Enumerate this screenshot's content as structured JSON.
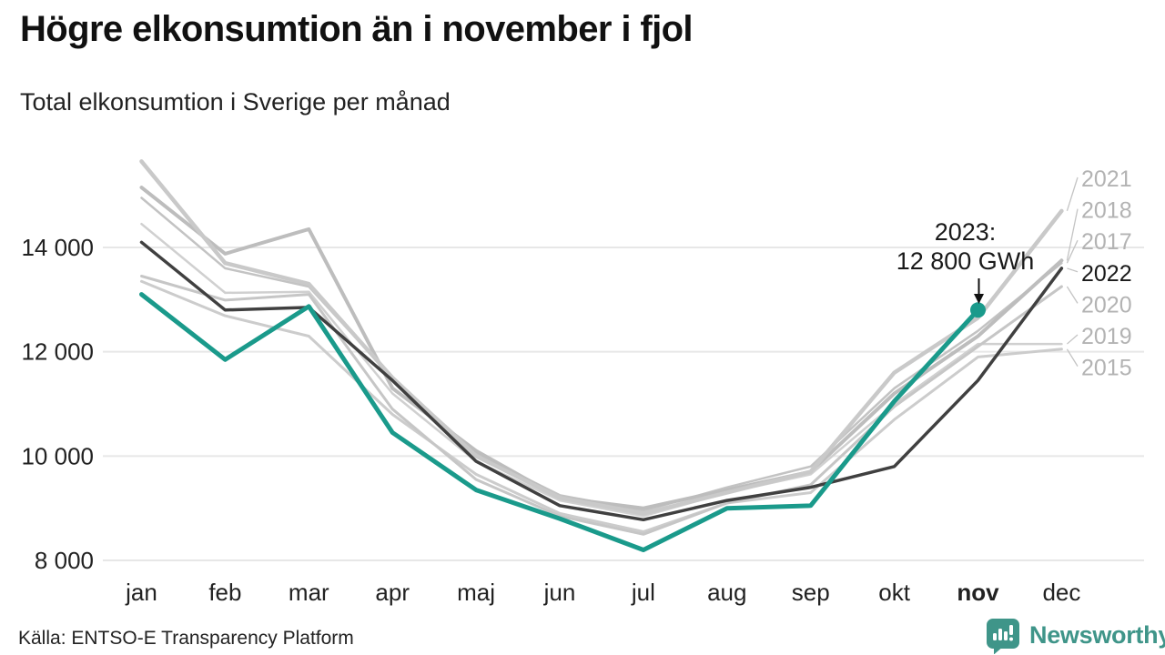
{
  "header": {
    "title": "Högre elkonsumtion än i november i fjol",
    "subtitle": "Total elkonsumtion i Sverige per månad"
  },
  "footer": {
    "source": "Källa: ENTSO-E Transparency Platform",
    "brand": "Newsworthy"
  },
  "annotation": {
    "line1": "2023:",
    "line2": "12 800 GWh",
    "target_series": "2023",
    "target_month": "nov",
    "value": 12800
  },
  "colors": {
    "accent": "#1a9a8b",
    "dark_line": "#404040",
    "grid": "#e7e7e7",
    "year_label": "#b3b3b3",
    "year_label_dark": "#1a1a1a",
    "text_dark": "#222222",
    "brand": "#3f9589"
  },
  "chart_data": {
    "type": "line",
    "title": "Högre elkonsumtion än i november i fjol",
    "subtitle": "Total elkonsumtion i Sverige per månad",
    "xlabel": "",
    "ylabel": "GWh",
    "unit": "GWh",
    "grid": "horizontal only",
    "legend_position": "right-edge year labels",
    "ylim": [
      7600,
      15900
    ],
    "x_categories": [
      "jan",
      "feb",
      "mar",
      "apr",
      "maj",
      "jun",
      "jul",
      "aug",
      "sep",
      "okt",
      "nov",
      "dec"
    ],
    "bold_x_category": "nov",
    "y_ticks": [
      {
        "value": 8000,
        "label": "8 000"
      },
      {
        "value": 10000,
        "label": "10 000"
      },
      {
        "value": 12000,
        "label": "12 000"
      },
      {
        "value": 14000,
        "label": "14 000"
      }
    ],
    "series": [
      {
        "name": "2015",
        "color": "#cccccc",
        "width": 3,
        "values": [
          13350,
          12690,
          12300,
          10800,
          9650,
          8900,
          8550,
          9100,
          9300,
          10700,
          11900,
          12050
        ]
      },
      {
        "name": "2017",
        "color": "#c3c3c3",
        "width": 2.5,
        "values": [
          14950,
          13600,
          13250,
          11500,
          10050,
          9250,
          8950,
          9400,
          9800,
          11300,
          12400,
          13700
        ]
      },
      {
        "name": "2018",
        "color": "#bdbdbd",
        "width": 4,
        "values": [
          15150,
          13880,
          14350,
          11300,
          10100,
          9200,
          9000,
          9350,
          9700,
          11200,
          12300,
          13750
        ]
      },
      {
        "name": "2019",
        "color": "#d0d0d0",
        "width": 2.5,
        "values": [
          14450,
          13130,
          13150,
          11200,
          9900,
          9150,
          8850,
          9300,
          9650,
          11000,
          12150,
          12150
        ]
      },
      {
        "name": "2020",
        "color": "#c6c6c6",
        "width": 3,
        "values": [
          13450,
          12990,
          13100,
          10900,
          9550,
          8850,
          8500,
          9100,
          9450,
          10950,
          12100,
          13250
        ]
      },
      {
        "name": "2021",
        "color": "#c9c9c9",
        "width": 4.5,
        "values": [
          15650,
          13700,
          13300,
          11500,
          10000,
          9200,
          8900,
          9300,
          9700,
          11600,
          12650,
          14700
        ]
      },
      {
        "name": "2022",
        "color": "#404040",
        "width": 3.5,
        "label_color": "#1a1a1a",
        "values": [
          14100,
          12800,
          12850,
          11450,
          9900,
          9050,
          8780,
          9150,
          9400,
          9800,
          11450,
          13600
        ]
      },
      {
        "name": "2023",
        "color": "#1a9a8b",
        "width": 5,
        "no_end_label": true,
        "values": [
          13100,
          11850,
          12870,
          10450,
          9350,
          8800,
          8200,
          9000,
          9050,
          11050,
          12800
        ]
      }
    ]
  }
}
